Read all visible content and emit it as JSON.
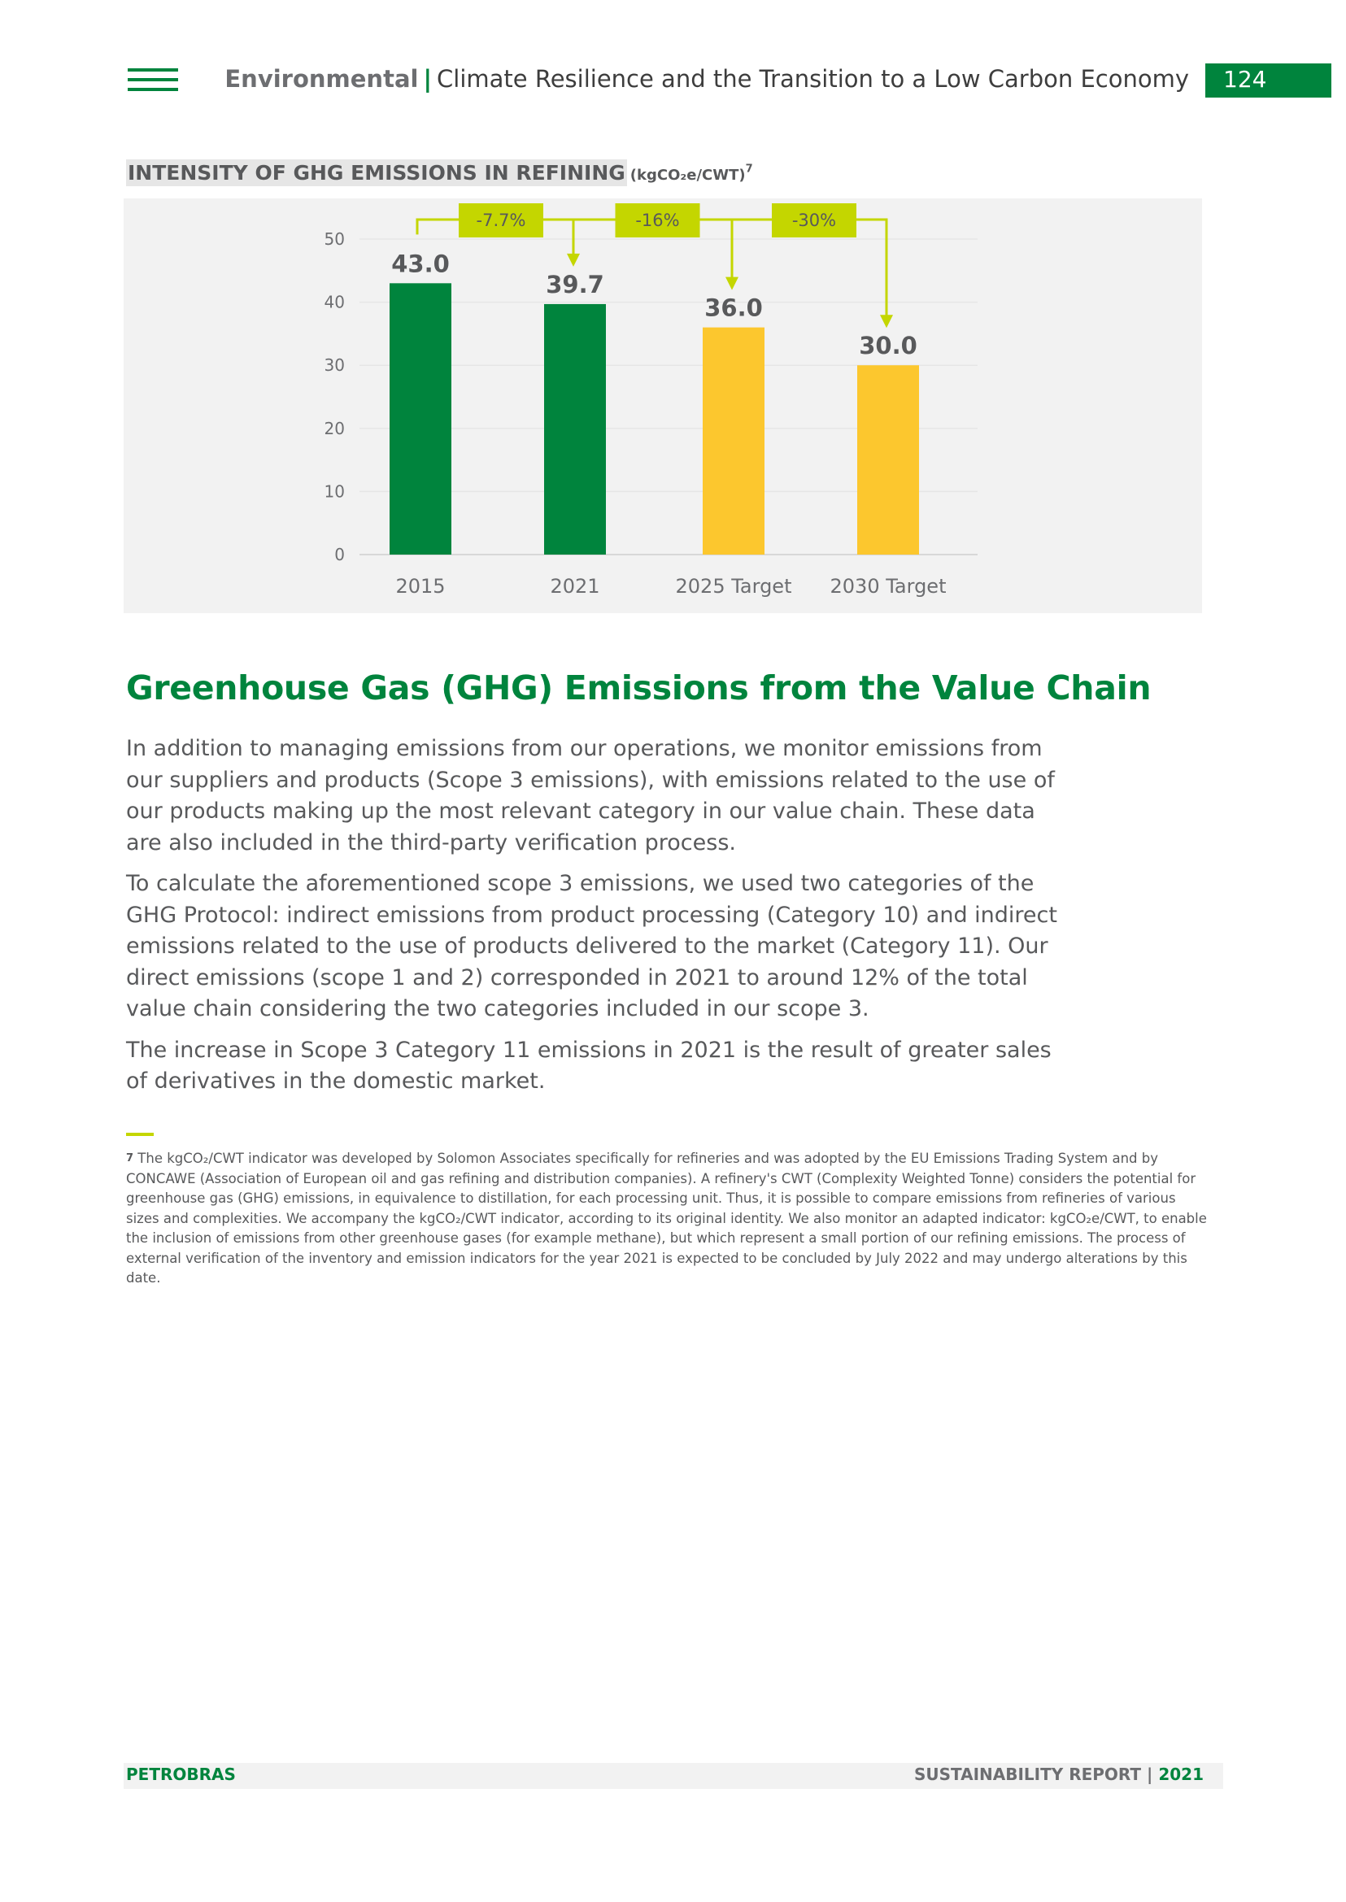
{
  "header": {
    "section": "Environmental",
    "separator": "|",
    "title": "Climate Resilience and the Transition to a Low Carbon Economy",
    "page_number": "124"
  },
  "chart_title": {
    "main": "INTENSITY OF GHG EMISSIONS IN REFINING",
    "unit": "(kgCO₂e/CWT)",
    "footnote_mark": "7"
  },
  "chart_data": {
    "type": "bar",
    "categories": [
      "2015",
      "2021",
      "2025 Target",
      "2030 Target"
    ],
    "values": [
      43.0,
      39.7,
      36.0,
      30.0
    ],
    "value_labels": [
      "43.0",
      "39.7",
      "36.0",
      "30.0"
    ],
    "bar_colors": [
      "#00843d",
      "#00843d",
      "#fcc72e",
      "#fcc72e"
    ],
    "ylim": [
      0,
      50
    ],
    "yticks": [
      "0",
      "10",
      "20",
      "30",
      "40",
      "50"
    ],
    "grid": true,
    "annotations": [
      {
        "label": "-7.7%",
        "from": "2015",
        "to": "2021"
      },
      {
        "label": "-16%",
        "from": "2015",
        "to": "2025 Target"
      },
      {
        "label": "-30%",
        "from": "2015",
        "to": "2030 Target"
      }
    ],
    "annotation_color": "#c4d600"
  },
  "section": {
    "heading": "Greenhouse Gas (GHG) Emissions from the Value Chain",
    "paragraphs": [
      "In addition to managing emissions from our operations, we monitor emissions from our suppliers and products (Scope 3 emissions), with emissions related to the use of our products making up the most relevant category in our value chain. These data are also included in the third-party verification process.",
      "To calculate the aforementioned scope 3 emissions, we used two categories of the GHG Protocol: indirect emissions from product processing (Category 10) and indirect emissions related to the use of products delivered to the market (Category 11).  Our direct emissions (scope 1 and 2) corresponded in 2021 to around 12% of the total value chain considering the two categories included in our scope 3.",
      "The increase in Scope 3 Category 11 emissions in 2021 is the result of greater sales of derivatives in the domestic market."
    ]
  },
  "footnote": {
    "mark": "7",
    "text": "The kgCO₂/CWT indicator was developed by Solomon Associates specifically for refineries and was adopted by the EU Emissions Trading System and by CONCAWE (Association of European oil and gas refining and distribution companies). A refinery's CWT (Complexity Weighted Tonne) considers the potential for greenhouse gas (GHG) emissions, in equivalence to distillation, for each processing unit. Thus, it is possible to compare emissions from refineries of various sizes and complexities. We accompany the kgCO₂/CWT indicator, according to its original identity. We also monitor an adapted indicator: kgCO₂e/CWT, to enable the inclusion of emissions from other greenhouse gases (for example methane), but which represent a small portion of our refining emissions. The process of external verification of the inventory and emission indicators for the year 2021 is expected to be concluded by July 2022 and may undergo alterations by this date."
  },
  "footer": {
    "company": "PETROBRAS",
    "report": "SUSTAINABILITY REPORT",
    "separator": "|",
    "year": "2021"
  },
  "colors": {
    "brand_green": "#00843d",
    "target_yellow": "#fcc72e",
    "accent_lime": "#c4d600",
    "panel_gray": "#f2f2f2"
  }
}
